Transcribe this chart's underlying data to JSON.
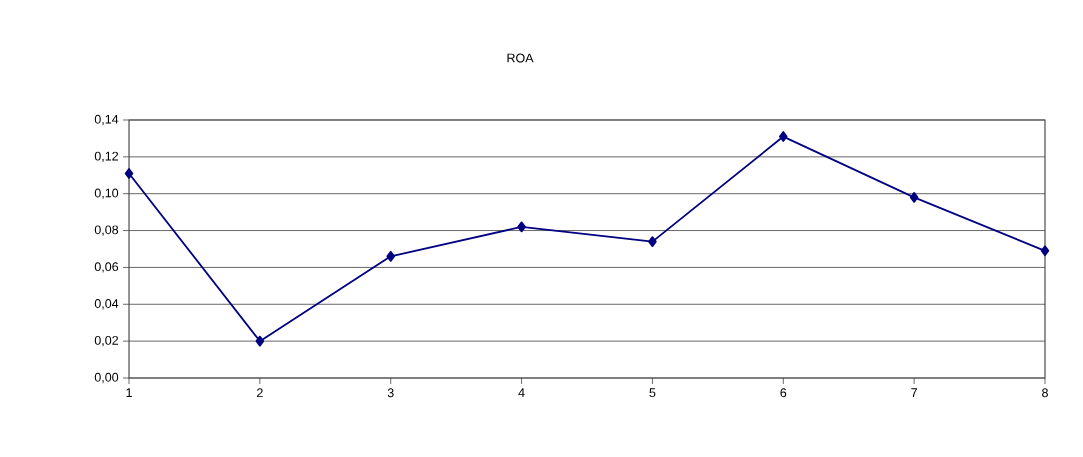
{
  "chart_data": {
    "type": "line",
    "title": "ROA",
    "categories": [
      "1",
      "2",
      "3",
      "4",
      "5",
      "6",
      "7",
      "8"
    ],
    "series": [
      {
        "color": "#000080",
        "values": [
          0.111,
          0.02,
          0.066,
          0.082,
          0.074,
          0.131,
          0.098,
          0.069
        ]
      }
    ],
    "ylim": [
      0,
      0.14
    ],
    "yticks": [
      {
        "value": 0,
        "label": "0,00"
      },
      {
        "value": 0.02,
        "label": "0,02"
      },
      {
        "value": 0.04,
        "label": "0,04"
      },
      {
        "value": 0.06,
        "label": "0,06"
      },
      {
        "value": 0.08,
        "label": "0,08"
      },
      {
        "value": 0.1,
        "label": "0,10"
      },
      {
        "value": 0.12,
        "label": "0,12"
      },
      {
        "value": 0.14,
        "label": "0,14"
      }
    ],
    "grid": "y",
    "marker": "diamond",
    "line_style": "solid"
  }
}
